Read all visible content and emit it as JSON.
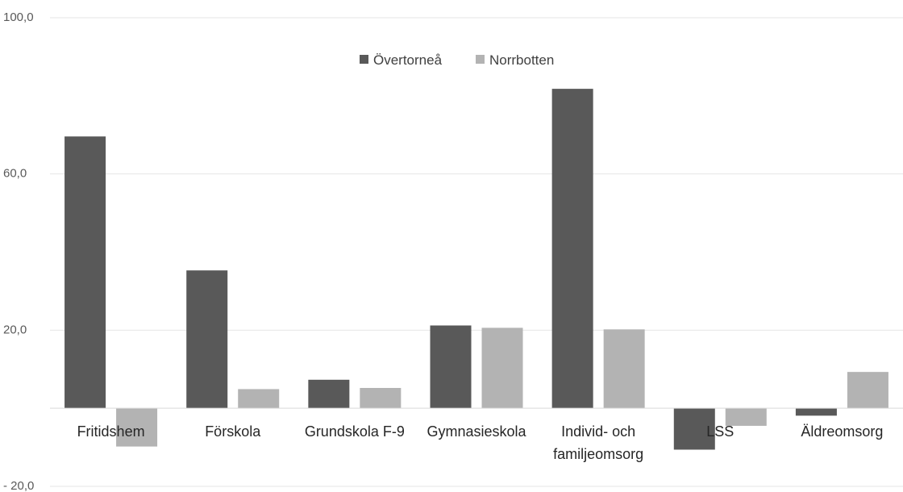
{
  "chart_data": {
    "type": "bar",
    "title": "",
    "xlabel": "",
    "ylabel": "",
    "categories": [
      "Fritidshem",
      "Förskola",
      "Grundskola F-9",
      "Gymnasieskola",
      "Individ- och familjeomsorg",
      "LSS",
      "Äldreomsorg"
    ],
    "category_label_lines": [
      [
        "Fritidshem"
      ],
      [
        "Förskola"
      ],
      [
        "Grundskola F-9"
      ],
      [
        "Gymnasieskola"
      ],
      [
        "Individ- och",
        "familjeomsorg"
      ],
      [
        "LSS"
      ],
      [
        "Äldreomsorg"
      ]
    ],
    "series": [
      {
        "name": "Övertorneå",
        "color": "#595959",
        "values": [
          69.6,
          35.3,
          7.3,
          21.2,
          81.8,
          -10.6,
          -1.9
        ]
      },
      {
        "name": "Norrbotten",
        "color": "#b3b3b3",
        "values": [
          -9.8,
          4.9,
          5.2,
          20.6,
          20.2,
          -4.5,
          9.3
        ]
      }
    ],
    "ylim": [
      -20,
      100
    ],
    "yticks": [
      "100,0",
      "60,0",
      "20,0",
      "- 20,0"
    ],
    "ytick_values": [
      100,
      60,
      20,
      -20
    ],
    "grid": true,
    "legend_position": "top-center"
  }
}
